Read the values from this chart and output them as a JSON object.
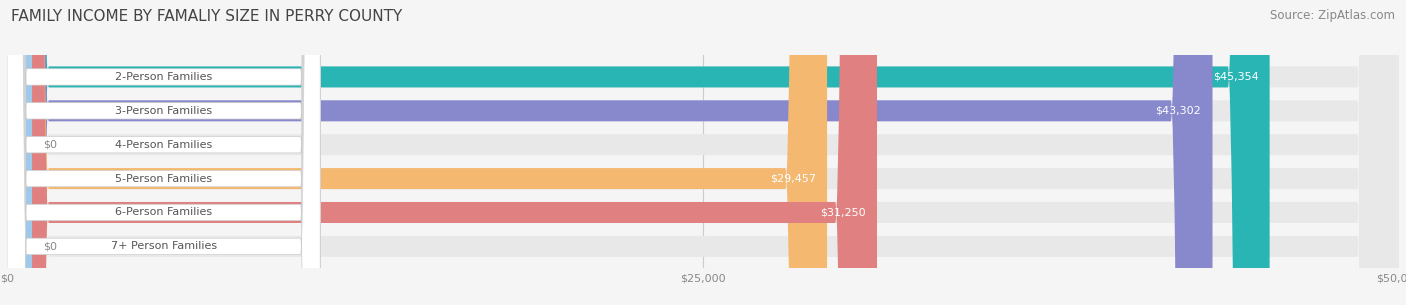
{
  "title": "FAMILY INCOME BY FAMALIY SIZE IN PERRY COUNTY",
  "source": "Source: ZipAtlas.com",
  "categories": [
    "2-Person Families",
    "3-Person Families",
    "4-Person Families",
    "5-Person Families",
    "6-Person Families",
    "7+ Person Families"
  ],
  "values": [
    45354,
    43302,
    0,
    29457,
    31250,
    0
  ],
  "bar_colors": [
    "#2ab5b5",
    "#8888cc",
    "#f0a0b8",
    "#f5b870",
    "#e08080",
    "#a0c8e8"
  ],
  "xlim": [
    0,
    50000
  ],
  "xtick_labels": [
    "$0",
    "$25,000",
    "$50,000"
  ],
  "xtick_values": [
    0,
    25000,
    50000
  ],
  "bar_height": 0.62,
  "background_color": "#f5f5f5",
  "title_fontsize": 11,
  "source_fontsize": 8.5,
  "label_fontsize": 8,
  "value_fontsize": 8
}
